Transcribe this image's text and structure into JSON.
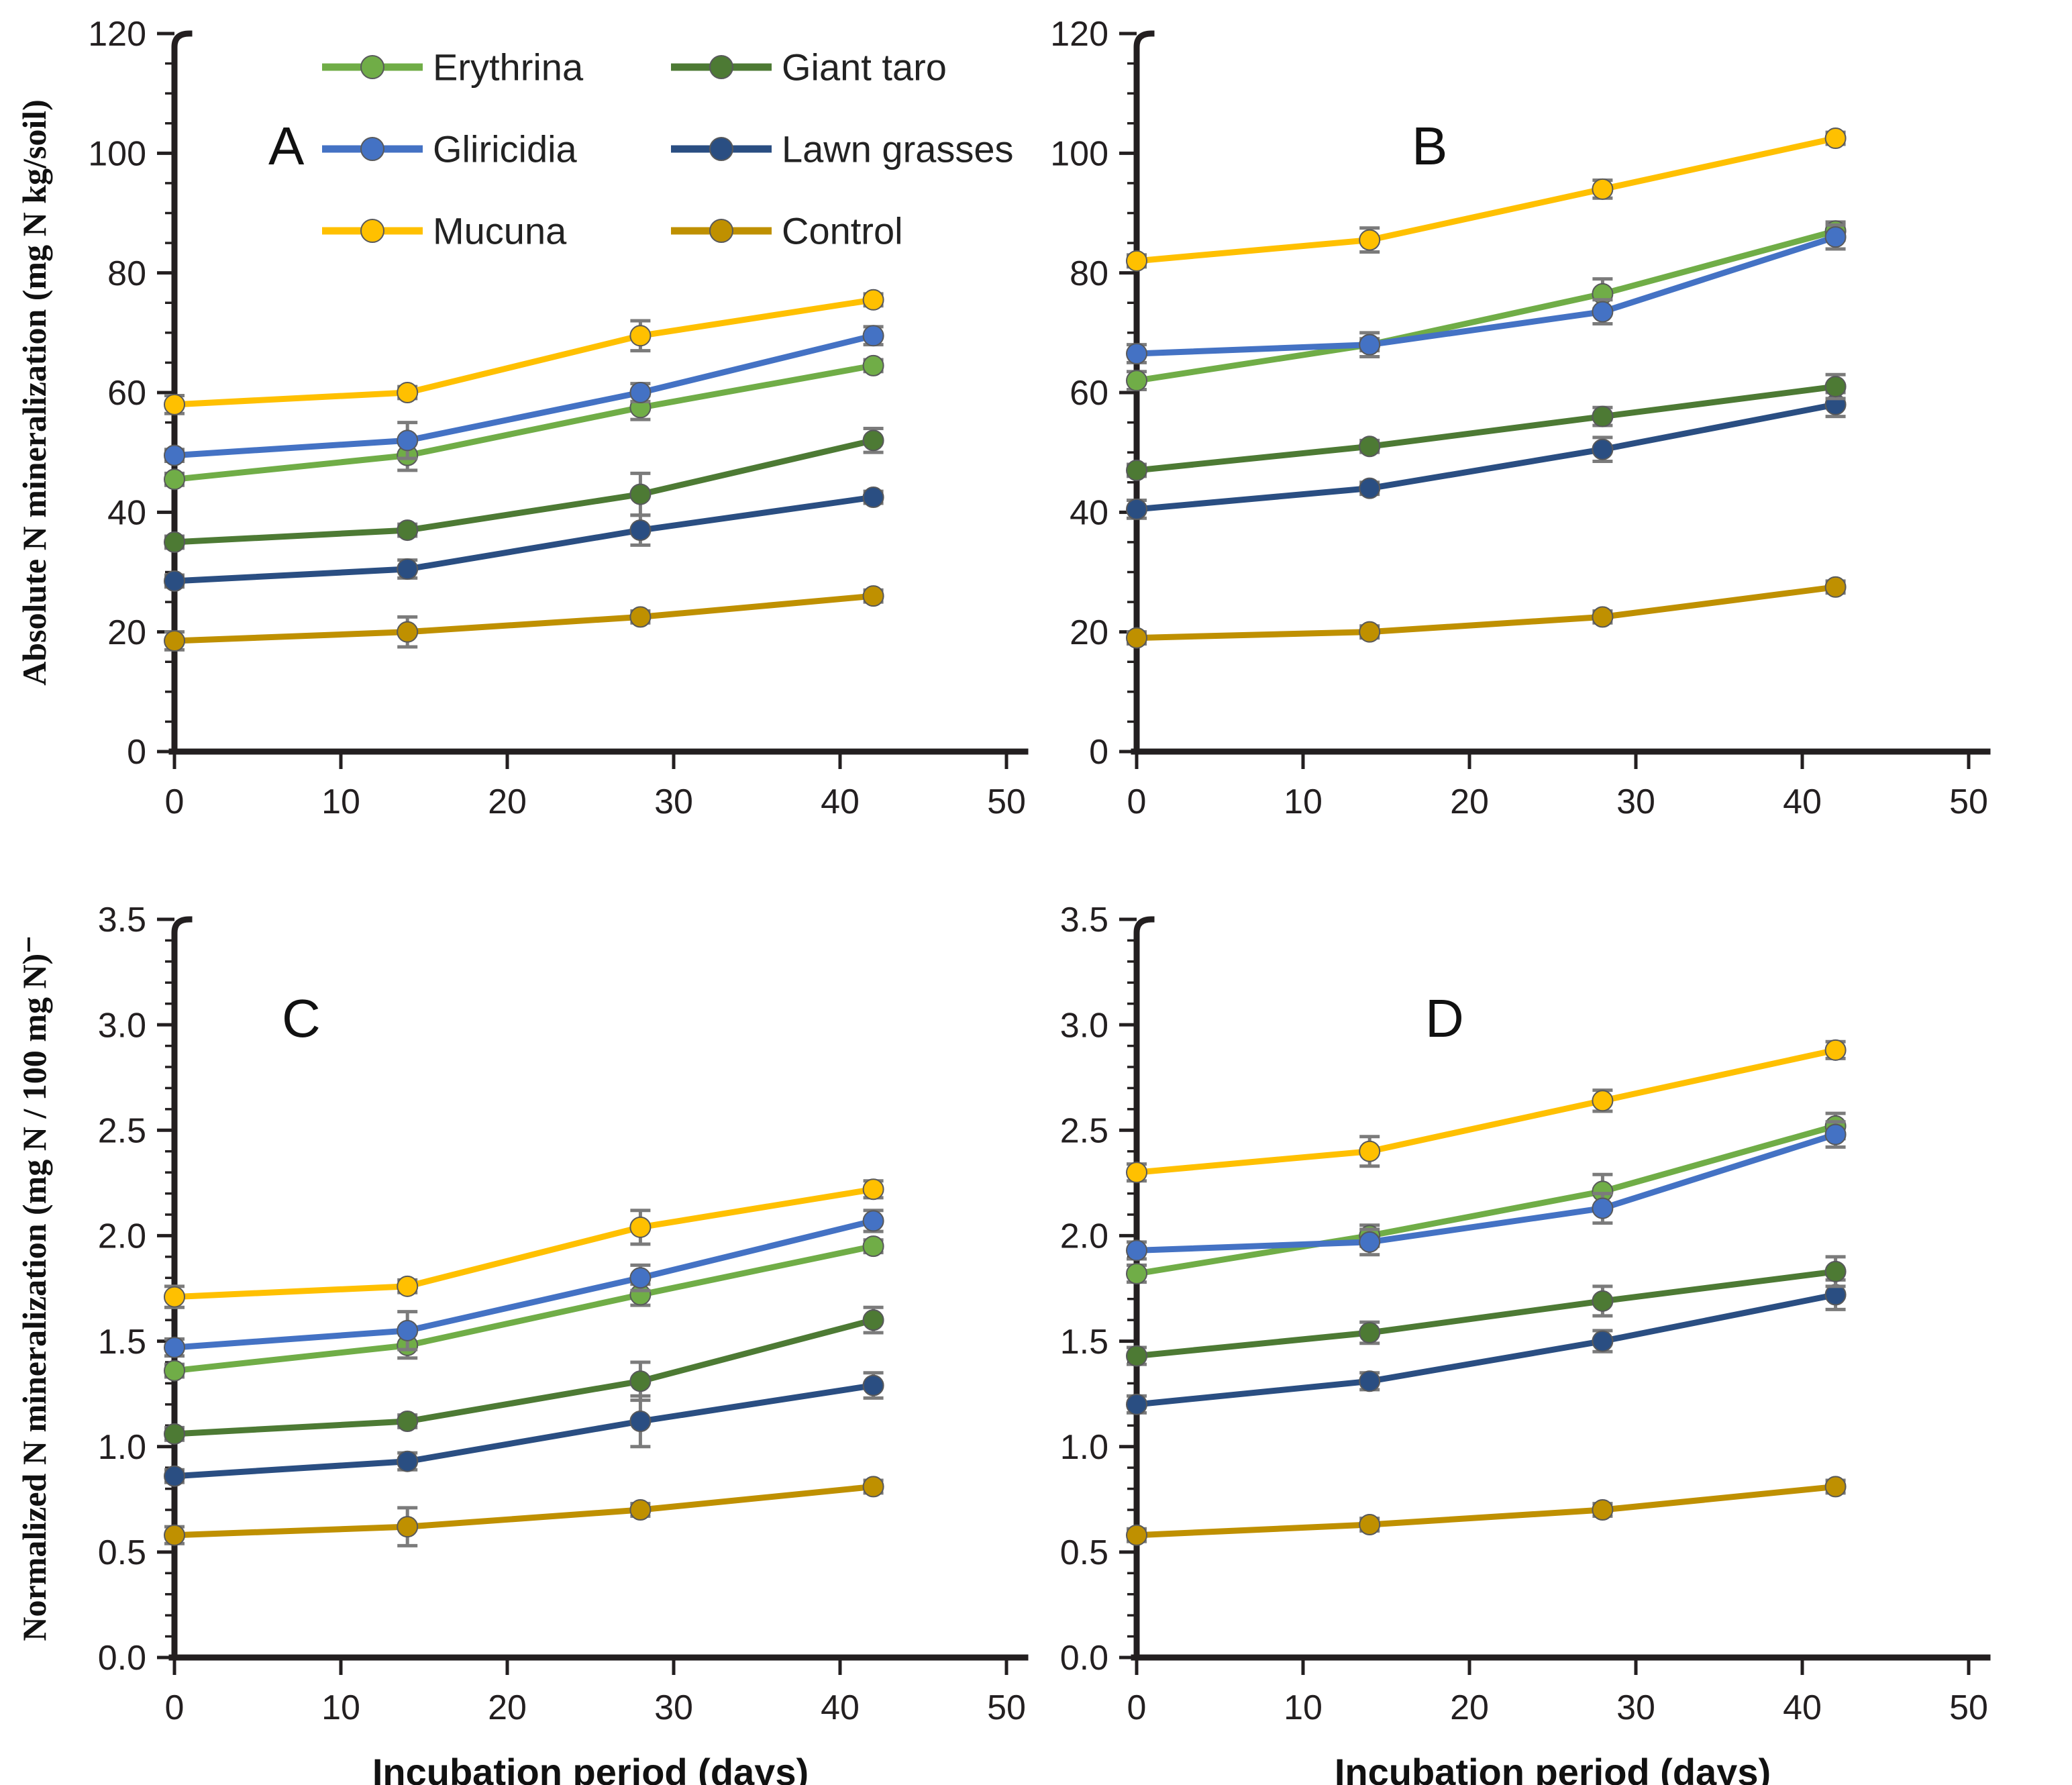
{
  "figure": {
    "description": "Four-panel line figure of soil N mineralization over incubation time",
    "x_axis_title": "Incubation period (days)",
    "error_bar_color": "#7b7b7b",
    "axis_color": "#231f20"
  },
  "legend": {
    "position": "top-inside-panel-A",
    "columns": [
      [
        "Erythrina",
        "Gliricidia",
        "Mucuna"
      ],
      [
        "Giant taro",
        "Lawn grasses",
        "Control"
      ]
    ]
  },
  "series_colors": {
    "Erythrina": "#70ad47",
    "Gliricidia": "#4472c4",
    "Mucuna": "#ffc000",
    "Giant taro": "#4d7a34",
    "Lawn grasses": "#2a4e82",
    "Control": "#bf9000"
  },
  "chart_data": [
    {
      "type": "line",
      "panel": "A",
      "title": "A",
      "ylabel": "Absolute N mineralization (mg N kg/soil)",
      "xlabel": "",
      "x": [
        0,
        14,
        28,
        42
      ],
      "xlim": [
        0,
        50
      ],
      "xticks": [
        0,
        10,
        20,
        30,
        40,
        50
      ],
      "ylim": [
        0,
        120
      ],
      "ytick_step": 20,
      "yminor_step": 5,
      "ydecimals": 0,
      "grid": false,
      "legend": true,
      "layout": {
        "row": "top",
        "left": 260,
        "letter_x": 400,
        "letter_y": 245
      },
      "series": [
        {
          "name": "Erythrina",
          "color": "#70ad47",
          "values": [
            45.5,
            49.5,
            57.5,
            64.5
          ],
          "err": [
            1,
            2.5,
            2,
            1
          ]
        },
        {
          "name": "Gliricidia",
          "color": "#4472c4",
          "values": [
            49.5,
            52,
            60,
            69.5
          ],
          "err": [
            1,
            3,
            1.5,
            1.5
          ]
        },
        {
          "name": "Mucuna",
          "color": "#ffc000",
          "values": [
            58,
            60,
            69.5,
            75.5
          ],
          "err": [
            1.5,
            1,
            2.5,
            1
          ]
        },
        {
          "name": "Giant taro",
          "color": "#4d7a34",
          "values": [
            35,
            37,
            43,
            52
          ],
          "err": [
            1,
            1,
            3.5,
            2
          ]
        },
        {
          "name": "Lawn grasses",
          "color": "#2a4e82",
          "values": [
            28.5,
            30.5,
            37,
            42.5
          ],
          "err": [
            1,
            1.5,
            2.5,
            1
          ]
        },
        {
          "name": "Control",
          "color": "#bf9000",
          "values": [
            18.5,
            20,
            22.5,
            26
          ],
          "err": [
            1.5,
            2.5,
            1,
            1
          ]
        }
      ]
    },
    {
      "type": "line",
      "panel": "B",
      "title": "B",
      "ylabel": "",
      "xlabel": "",
      "x": [
        0,
        14,
        28,
        42
      ],
      "xlim": [
        0,
        50
      ],
      "xticks": [
        0,
        10,
        20,
        30,
        40,
        50
      ],
      "ylim": [
        0,
        120
      ],
      "ytick_step": 20,
      "yminor_step": 5,
      "ydecimals": 0,
      "grid": false,
      "legend": false,
      "layout": {
        "row": "top",
        "left": 150,
        "letter_x": 560,
        "letter_y": 245
      },
      "series": [
        {
          "name": "Erythrina",
          "color": "#70ad47",
          "values": [
            62,
            68,
            76.5,
            87
          ],
          "err": [
            1.5,
            1,
            2.5,
            1.5
          ]
        },
        {
          "name": "Gliricidia",
          "color": "#4472c4",
          "values": [
            66.5,
            68,
            73.5,
            86
          ],
          "err": [
            1.5,
            2,
            2,
            2
          ]
        },
        {
          "name": "Mucuna",
          "color": "#ffc000",
          "values": [
            82,
            85.5,
            94,
            102.5
          ],
          "err": [
            1,
            2,
            1.5,
            1
          ]
        },
        {
          "name": "Giant taro",
          "color": "#4d7a34",
          "values": [
            47,
            51,
            56,
            61
          ],
          "err": [
            1,
            1,
            1.5,
            2
          ]
        },
        {
          "name": "Lawn grasses",
          "color": "#2a4e82",
          "values": [
            40.5,
            44,
            50.5,
            58
          ],
          "err": [
            1.5,
            1,
            2,
            2
          ]
        },
        {
          "name": "Control",
          "color": "#bf9000",
          "values": [
            19,
            20,
            22.5,
            27.5
          ],
          "err": [
            1,
            1,
            1,
            1
          ]
        }
      ]
    },
    {
      "type": "line",
      "panel": "C",
      "title": "C",
      "ylabel": "Normalized N mineralization (mg N / 100 mg N)⁻",
      "xlabel": "Incubation period (days)",
      "x": [
        0,
        14,
        28,
        42
      ],
      "xlim": [
        0,
        50
      ],
      "xticks": [
        0,
        10,
        20,
        30,
        40,
        50
      ],
      "ylim": [
        0,
        3.5
      ],
      "ytick_step": 0.5,
      "yminor_step": 0.1,
      "ydecimals": 1,
      "grid": false,
      "legend": false,
      "layout": {
        "row": "bottom",
        "left": 260,
        "letter_x": 420,
        "letter_y": 215
      },
      "series": [
        {
          "name": "Erythrina",
          "color": "#70ad47",
          "values": [
            1.36,
            1.48,
            1.72,
            1.95
          ],
          "err": [
            0.03,
            0.06,
            0.05,
            0.03
          ]
        },
        {
          "name": "Gliricidia",
          "color": "#4472c4",
          "values": [
            1.47,
            1.55,
            1.8,
            2.07
          ],
          "err": [
            0.04,
            0.09,
            0.06,
            0.05
          ]
        },
        {
          "name": "Mucuna",
          "color": "#ffc000",
          "values": [
            1.71,
            1.76,
            2.04,
            2.22
          ],
          "err": [
            0.05,
            0.03,
            0.08,
            0.04
          ]
        },
        {
          "name": "Giant taro",
          "color": "#4d7a34",
          "values": [
            1.06,
            1.12,
            1.31,
            1.6
          ],
          "err": [
            0.03,
            0.03,
            0.09,
            0.06
          ]
        },
        {
          "name": "Lawn grasses",
          "color": "#2a4e82",
          "values": [
            0.86,
            0.93,
            1.12,
            1.29
          ],
          "err": [
            0.03,
            0.04,
            0.12,
            0.06
          ]
        },
        {
          "name": "Control",
          "color": "#bf9000",
          "values": [
            0.58,
            0.62,
            0.7,
            0.81
          ],
          "err": [
            0.04,
            0.09,
            0.03,
            0.03
          ]
        }
      ]
    },
    {
      "type": "line",
      "panel": "D",
      "title": "D",
      "ylabel": "",
      "xlabel": "Incubation period (days)",
      "x": [
        0,
        14,
        28,
        42
      ],
      "xlim": [
        0,
        50
      ],
      "xticks": [
        0,
        10,
        20,
        30,
        40,
        50
      ],
      "ylim": [
        0,
        3.5
      ],
      "ytick_step": 0.5,
      "yminor_step": 0.1,
      "ydecimals": 1,
      "grid": false,
      "legend": false,
      "layout": {
        "row": "bottom",
        "left": 150,
        "letter_x": 580,
        "letter_y": 215
      },
      "series": [
        {
          "name": "Erythrina",
          "color": "#70ad47",
          "values": [
            1.82,
            2.0,
            2.21,
            2.52
          ],
          "err": [
            0.04,
            0.05,
            0.08,
            0.06
          ]
        },
        {
          "name": "Gliricidia",
          "color": "#4472c4",
          "values": [
            1.93,
            1.97,
            2.13,
            2.48
          ],
          "err": [
            0.04,
            0.06,
            0.07,
            0.06
          ]
        },
        {
          "name": "Mucuna",
          "color": "#ffc000",
          "values": [
            2.3,
            2.4,
            2.64,
            2.88
          ],
          "err": [
            0.04,
            0.07,
            0.05,
            0.04
          ]
        },
        {
          "name": "Giant taro",
          "color": "#4d7a34",
          "values": [
            1.43,
            1.54,
            1.69,
            1.83
          ],
          "err": [
            0.04,
            0.05,
            0.07,
            0.07
          ]
        },
        {
          "name": "Lawn grasses",
          "color": "#2a4e82",
          "values": [
            1.2,
            1.31,
            1.5,
            1.72
          ],
          "err": [
            0.04,
            0.04,
            0.05,
            0.07
          ]
        },
        {
          "name": "Control",
          "color": "#bf9000",
          "values": [
            0.58,
            0.63,
            0.7,
            0.81
          ],
          "err": [
            0.03,
            0.03,
            0.03,
            0.03
          ]
        }
      ]
    }
  ]
}
